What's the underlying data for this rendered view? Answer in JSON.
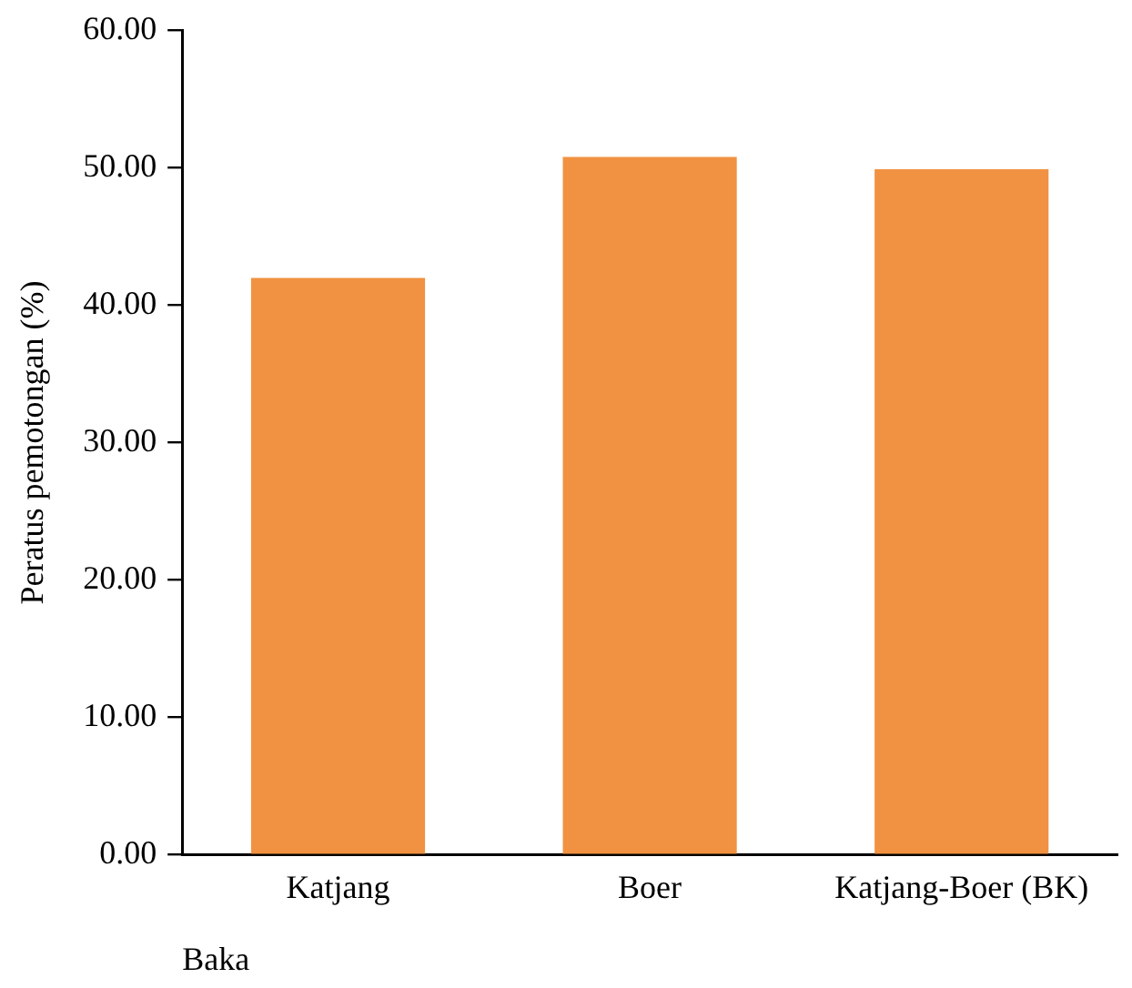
{
  "chart_data": {
    "type": "bar",
    "ylabel": "Peratus pemotongan (%)",
    "xlabel": "Baka",
    "categories": [
      "Katjang",
      "Boer",
      "Katjang-Boer (BK)"
    ],
    "values": [
      42.0,
      50.8,
      49.9
    ],
    "color": "#f19242",
    "ylim": [
      0,
      60
    ],
    "yticks": [
      {
        "value": 0,
        "label": "0.00"
      },
      {
        "value": 10,
        "label": "10.00"
      },
      {
        "value": 20,
        "label": "20.00"
      },
      {
        "value": 30,
        "label": "30.00"
      },
      {
        "value": 40,
        "label": "40.00"
      },
      {
        "value": 50,
        "label": "50.00"
      },
      {
        "value": 60,
        "label": "60.00"
      }
    ],
    "grid": false,
    "legend": false
  }
}
